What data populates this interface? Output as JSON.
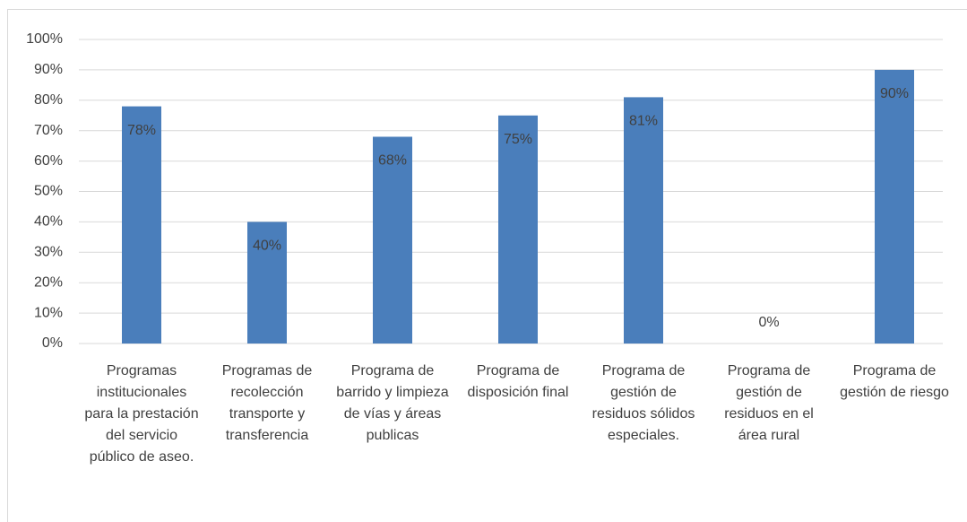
{
  "chart_data": {
    "type": "bar",
    "categories": [
      "Programas institucionales para la prestación del servicio público de aseo.",
      "Programas de recolección transporte y transferencia",
      "Programa de barrido y limpieza de vías y áreas publicas",
      "Programa de disposición final",
      "Programa de gestión de residuos sólidos especiales.",
      "Programa de gestión de residuos en el área rural",
      "Programa de gestión de riesgo"
    ],
    "values": [
      78,
      40,
      68,
      75,
      81,
      0,
      90
    ],
    "value_labels": [
      "78%",
      "40%",
      "68%",
      "75%",
      "81%",
      "0%",
      "90%"
    ],
    "color": "#4a7ebb",
    "ylim": [
      0,
      100
    ],
    "yticks": [
      {
        "value": 0,
        "label": "0%"
      },
      {
        "value": 10,
        "label": "10%"
      },
      {
        "value": 20,
        "label": "20%"
      },
      {
        "value": 30,
        "label": "30%"
      },
      {
        "value": 40,
        "label": "40%"
      },
      {
        "value": 50,
        "label": "50%"
      },
      {
        "value": 60,
        "label": "60%"
      },
      {
        "value": 70,
        "label": "70%"
      },
      {
        "value": 80,
        "label": "80%"
      },
      {
        "value": 90,
        "label": "90%"
      },
      {
        "value": 100,
        "label": "100%"
      }
    ],
    "grid": true
  }
}
